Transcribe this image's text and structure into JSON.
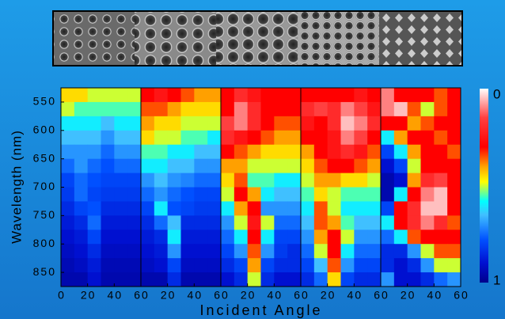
{
  "xlabel": "Incident Angle",
  "ylabel": "Wavelength (nm)",
  "colorbar": {
    "lim": [
      0,
      1
    ],
    "ticks": [
      0,
      1
    ]
  },
  "chart_data": [
    {
      "type": "heatmap",
      "xbins": [
        0,
        10,
        20,
        30,
        40,
        50,
        60
      ],
      "ybins": [
        525,
        550,
        575,
        600,
        625,
        650,
        675,
        700,
        725,
        750,
        775,
        800,
        825,
        850,
        875
      ],
      "xlim": [
        0,
        60
      ],
      "ylim": [
        525,
        875
      ],
      "xticks": [
        0,
        20,
        40,
        60
      ],
      "yticks": [
        550,
        600,
        650,
        700,
        750,
        800,
        850
      ],
      "values": [
        [
          0.45,
          0.45,
          0.5,
          0.5,
          0.5,
          0.5
        ],
        [
          0.5,
          0.55,
          0.55,
          0.55,
          0.55,
          0.55
        ],
        [
          0.6,
          0.6,
          0.6,
          0.65,
          0.6,
          0.6
        ],
        [
          0.65,
          0.65,
          0.65,
          0.7,
          0.65,
          0.65
        ],
        [
          0.7,
          0.7,
          0.7,
          0.75,
          0.7,
          0.7
        ],
        [
          0.75,
          0.7,
          0.75,
          0.78,
          0.75,
          0.75
        ],
        [
          0.8,
          0.75,
          0.78,
          0.8,
          0.8,
          0.8
        ],
        [
          0.82,
          0.75,
          0.8,
          0.82,
          0.82,
          0.82
        ],
        [
          0.85,
          0.8,
          0.78,
          0.85,
          0.85,
          0.85
        ],
        [
          0.88,
          0.85,
          0.75,
          0.88,
          0.88,
          0.88
        ],
        [
          0.9,
          0.88,
          0.8,
          0.9,
          0.9,
          0.9
        ],
        [
          0.92,
          0.9,
          0.85,
          0.92,
          0.92,
          0.92
        ],
        [
          0.94,
          0.92,
          0.88,
          0.94,
          0.94,
          0.94
        ],
        [
          0.95,
          0.95,
          0.9,
          0.95,
          0.95,
          0.95
        ]
      ]
    },
    {
      "type": "heatmap",
      "xbins": [
        0,
        10,
        20,
        30,
        40,
        50,
        60
      ],
      "ybins": [
        525,
        550,
        575,
        600,
        625,
        650,
        675,
        700,
        725,
        750,
        775,
        800,
        825,
        850,
        875
      ],
      "xlim": [
        0,
        60
      ],
      "ylim": [
        525,
        875
      ],
      "xticks": [
        20,
        40,
        60
      ],
      "values": [
        [
          0.3,
          0.25,
          0.3,
          0.35,
          0.4,
          0.4
        ],
        [
          0.35,
          0.35,
          0.4,
          0.45,
          0.45,
          0.45
        ],
        [
          0.4,
          0.45,
          0.45,
          0.5,
          0.5,
          0.5
        ],
        [
          0.45,
          0.5,
          0.5,
          0.55,
          0.55,
          0.6
        ],
        [
          0.55,
          0.55,
          0.6,
          0.6,
          0.65,
          0.65
        ],
        [
          0.6,
          0.6,
          0.65,
          0.65,
          0.7,
          0.7
        ],
        [
          0.7,
          0.65,
          0.7,
          0.72,
          0.75,
          0.75
        ],
        [
          0.75,
          0.7,
          0.75,
          0.78,
          0.8,
          0.8
        ],
        [
          0.8,
          0.6,
          0.78,
          0.8,
          0.82,
          0.82
        ],
        [
          0.85,
          0.75,
          0.65,
          0.85,
          0.85,
          0.85
        ],
        [
          0.88,
          0.85,
          0.6,
          0.88,
          0.88,
          0.88
        ],
        [
          0.9,
          0.88,
          0.7,
          0.9,
          0.9,
          0.9
        ],
        [
          0.92,
          0.9,
          0.8,
          0.92,
          0.92,
          0.92
        ],
        [
          0.95,
          0.95,
          0.85,
          0.95,
          0.95,
          0.95
        ]
      ]
    },
    {
      "type": "heatmap",
      "xbins": [
        0,
        10,
        20,
        30,
        40,
        50,
        60
      ],
      "ybins": [
        525,
        550,
        575,
        600,
        625,
        650,
        675,
        700,
        725,
        750,
        775,
        800,
        825,
        850,
        875
      ],
      "xlim": [
        0,
        60
      ],
      "ylim": [
        525,
        875
      ],
      "xticks": [
        20,
        40,
        60
      ],
      "values": [
        [
          0.3,
          0.2,
          0.25,
          0.3,
          0.3,
          0.3
        ],
        [
          0.3,
          0.1,
          0.2,
          0.3,
          0.3,
          0.3
        ],
        [
          0.15,
          0.1,
          0.2,
          0.3,
          0.35,
          0.35
        ],
        [
          0.2,
          0.25,
          0.3,
          0.35,
          0.4,
          0.4
        ],
        [
          0.3,
          0.35,
          0.4,
          0.45,
          0.45,
          0.45
        ],
        [
          0.4,
          0.4,
          0.5,
          0.5,
          0.5,
          0.5
        ],
        [
          0.45,
          0.35,
          0.55,
          0.55,
          0.6,
          0.6
        ],
        [
          0.5,
          0.3,
          0.4,
          0.6,
          0.65,
          0.65
        ],
        [
          0.6,
          0.4,
          0.3,
          0.7,
          0.7,
          0.7
        ],
        [
          0.7,
          0.5,
          0.25,
          0.5,
          0.75,
          0.75
        ],
        [
          0.75,
          0.6,
          0.3,
          0.6,
          0.8,
          0.8
        ],
        [
          0.8,
          0.7,
          0.35,
          0.7,
          0.82,
          0.85
        ],
        [
          0.85,
          0.8,
          0.4,
          0.8,
          0.85,
          0.85
        ],
        [
          0.9,
          0.85,
          0.5,
          0.85,
          0.9,
          0.9
        ]
      ]
    },
    {
      "type": "heatmap",
      "xbins": [
        0,
        10,
        20,
        30,
        40,
        50,
        60
      ],
      "ybins": [
        525,
        550,
        575,
        600,
        625,
        650,
        675,
        700,
        725,
        750,
        775,
        800,
        825,
        850,
        875
      ],
      "xlim": [
        0,
        60
      ],
      "ylim": [
        525,
        875
      ],
      "xticks": [
        20,
        40,
        60
      ],
      "values": [
        [
          0.3,
          0.3,
          0.3,
          0.3,
          0.25,
          0.3
        ],
        [
          0.2,
          0.15,
          0.2,
          0.1,
          0.15,
          0.25
        ],
        [
          0.25,
          0.3,
          0.2,
          0.05,
          0.1,
          0.2
        ],
        [
          0.3,
          0.3,
          0.25,
          0.1,
          0.15,
          0.3
        ],
        [
          0.4,
          0.3,
          0.25,
          0.2,
          0.25,
          0.35
        ],
        [
          0.45,
          0.35,
          0.3,
          0.3,
          0.35,
          0.4
        ],
        [
          0.5,
          0.4,
          0.4,
          0.45,
          0.45,
          0.5
        ],
        [
          0.55,
          0.45,
          0.5,
          0.55,
          0.55,
          0.55
        ],
        [
          0.6,
          0.35,
          0.5,
          0.6,
          0.6,
          0.6
        ],
        [
          0.65,
          0.35,
          0.4,
          0.55,
          0.65,
          0.65
        ],
        [
          0.7,
          0.4,
          0.3,
          0.5,
          0.7,
          0.7
        ],
        [
          0.75,
          0.5,
          0.3,
          0.6,
          0.75,
          0.75
        ],
        [
          0.8,
          0.65,
          0.35,
          0.7,
          0.8,
          0.8
        ],
        [
          0.85,
          0.75,
          0.45,
          0.8,
          0.85,
          0.85
        ]
      ]
    },
    {
      "type": "heatmap",
      "xbins": [
        0,
        10,
        20,
        30,
        40,
        50,
        60
      ],
      "ybins": [
        525,
        550,
        575,
        600,
        625,
        650,
        675,
        700,
        725,
        750,
        775,
        800,
        825,
        850,
        875
      ],
      "xlim": [
        0,
        60
      ],
      "ylim": [
        525,
        875
      ],
      "xticks": [
        20,
        40,
        60
      ],
      "values": [
        [
          0.1,
          0.3,
          0.3,
          0.3,
          0.35,
          0.3
        ],
        [
          0.1,
          0.05,
          0.35,
          0.5,
          0.35,
          0.3
        ],
        [
          0.3,
          0.3,
          0.4,
          0.35,
          0.3,
          0.3
        ],
        [
          0.6,
          0.4,
          0.3,
          0.3,
          0.35,
          0.3
        ],
        [
          0.8,
          0.6,
          0.4,
          0.3,
          0.3,
          0.35
        ],
        [
          0.9,
          0.8,
          0.5,
          0.3,
          0.3,
          0.3
        ],
        [
          0.95,
          0.9,
          0.4,
          0.2,
          0.15,
          0.3
        ],
        [
          0.95,
          0.6,
          0.3,
          0.1,
          0.05,
          0.3
        ],
        [
          0.8,
          0.3,
          0.2,
          0.05,
          0.05,
          0.3
        ],
        [
          0.6,
          0.3,
          0.2,
          0.1,
          0.2,
          0.35
        ],
        [
          0.75,
          0.6,
          0.35,
          0.3,
          0.3,
          0.3
        ],
        [
          0.85,
          0.85,
          0.7,
          0.5,
          0.35,
          0.35
        ],
        [
          0.85,
          0.9,
          0.85,
          0.7,
          0.5,
          0.5
        ],
        [
          0.7,
          0.9,
          0.9,
          0.85,
          0.75,
          0.7
        ]
      ]
    }
  ]
}
